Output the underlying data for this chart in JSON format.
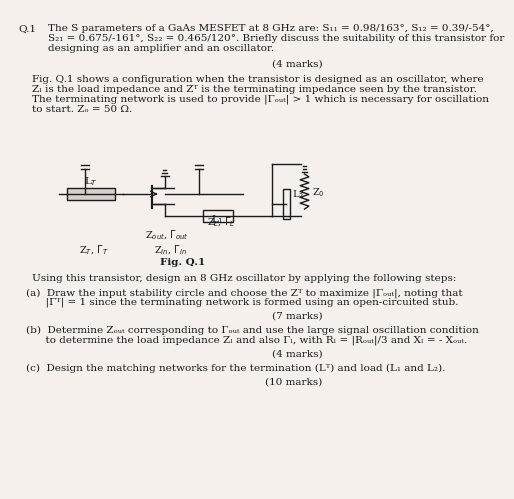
{
  "bg_color": "#f5f0eb",
  "text_color": "#1a1a1a",
  "title": "Q.1",
  "line1": "The S parameters of a GaAs MESFET at 8 GHz are: S₁₁ = 0.98/163°, S₁₂ = 0.39/-54°,",
  "line2": "S₂₁ = 0.675/-161°, S₂₂ = 0.465/120°. Briefly discuss the suitability of this transistor for",
  "line3": "designing as an amplifier and an oscillator.",
  "marks1": "(4 marks)",
  "fig_desc1": "Fig. Q.1 shows a configuration when the transistor is designed as an oscillator, where",
  "fig_desc2": "Zₗ is the load impedance and Zᵀ is the terminating impedance seen by the transistor.",
  "fig_desc3": "The terminating network is used to provide |Γₒᵤₜ| > 1 which is necessary for oscillation",
  "fig_desc4": "to start. Zₒ = 50 Ω.",
  "fig_label": "Fig. Q.1",
  "using_text": "Using this transistor, design an 8 GHz oscillator by applying the following steps:",
  "a_text": "(a)  Draw the input stability circle and choose the Zᵀ to maximize |Γₒᵤₜ|, noting that",
  "a_text2": "      |Γᵀ| = 1 since the terminating network is formed using an open-circuited stub.",
  "marks2": "(7 marks)",
  "b_text": "(b)  Determine Zₒᵤₜ corresponding to Γₒᵤₜ and use the large signal oscillation condition",
  "b_text2": "      to determine the load impedance Zₗ and also Γₗ, with Rₗ = |Rₒᵤₜ|/3 and Xₗ = - Xₒᵤₜ.",
  "marks3": "(4 marks)",
  "c_text": "(c)  Design the matching networks for the termination (Lᵀ) and load (L₁ and L₂).",
  "marks4": "(10 marks)"
}
